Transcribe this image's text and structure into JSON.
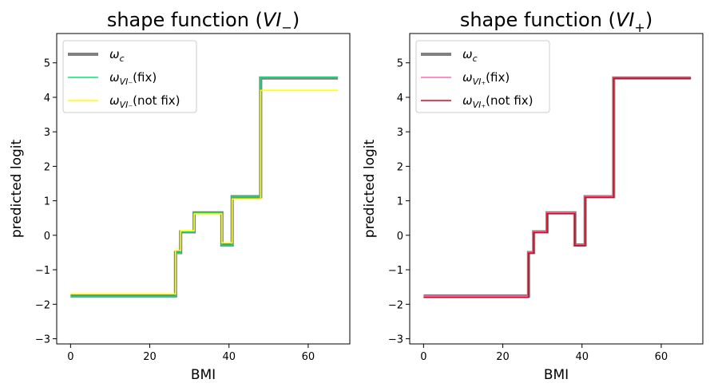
{
  "chart_data": [
    {
      "type": "line",
      "title": "shape function (VI₋)",
      "title_parts": {
        "prefix": "shape function (",
        "symbol": "VI",
        "subscript": "−",
        "suffix": ")"
      },
      "xlabel": "BMI",
      "ylabel": "predicted logit",
      "xlim": [
        -3.5,
        70.5
      ],
      "ylim": [
        -3.15,
        5.85
      ],
      "xticks": [
        0,
        20,
        40,
        60
      ],
      "yticks": [
        -3,
        -2,
        -1,
        0,
        1,
        2,
        3,
        4,
        5
      ],
      "legend_position": "upper left",
      "series": [
        {
          "name": "ω_c",
          "label_parts": {
            "base": "ω",
            "sub": "c",
            "suffix": ""
          },
          "color": "#808080",
          "width": 4,
          "x": [
            0,
            26.5,
            26.5,
            27.8,
            27.8,
            31.2,
            31.2,
            38.2,
            38.2,
            40.8,
            40.8,
            48.0,
            48.0,
            67.5
          ],
          "y": [
            -1.76,
            -1.76,
            -0.5,
            -0.5,
            0.1,
            0.1,
            0.65,
            0.65,
            -0.28,
            -0.28,
            1.12,
            1.12,
            4.56,
            4.56
          ]
        },
        {
          "name": "ω_VI₋(fix)",
          "label_parts": {
            "base": "ω",
            "sub": "VI₋",
            "suffix": "(fix)"
          },
          "color": "#00e676",
          "width": 1.6,
          "x": [
            0,
            26.5,
            26.5,
            27.8,
            27.8,
            31.2,
            31.2,
            38.2,
            38.2,
            40.8,
            40.8,
            48.0,
            48.0,
            67.5
          ],
          "y": [
            -1.78,
            -1.78,
            -0.52,
            -0.52,
            0.1,
            0.1,
            0.65,
            0.65,
            -0.3,
            -0.3,
            1.12,
            1.12,
            4.58,
            4.58
          ]
        },
        {
          "name": "ω_VI₋(not fix)",
          "label_parts": {
            "base": "ω",
            "sub": "VI₋",
            "suffix": "(not fix)"
          },
          "color": "#ffff00",
          "width": 1.6,
          "x": [
            0,
            26.5,
            26.5,
            27.8,
            27.8,
            31.2,
            31.2,
            38.2,
            38.2,
            40.8,
            40.8,
            48.0,
            48.0,
            67.5
          ],
          "y": [
            -1.7,
            -1.7,
            -0.44,
            -0.44,
            0.13,
            0.13,
            0.62,
            0.62,
            -0.22,
            -0.22,
            1.05,
            1.05,
            4.2,
            4.2
          ]
        }
      ]
    },
    {
      "type": "line",
      "title": "shape function (VI₊)",
      "title_parts": {
        "prefix": "shape function (",
        "symbol": "VI",
        "subscript": "+",
        "suffix": ")"
      },
      "xlabel": "BMI",
      "ylabel": "predicted logit",
      "xlim": [
        -3.5,
        70.5
      ],
      "ylim": [
        -3.15,
        5.85
      ],
      "xticks": [
        0,
        20,
        40,
        60
      ],
      "yticks": [
        -3,
        -2,
        -1,
        0,
        1,
        2,
        3,
        4,
        5
      ],
      "legend_position": "upper left",
      "series": [
        {
          "name": "ω_c",
          "label_parts": {
            "base": "ω",
            "sub": "c",
            "suffix": ""
          },
          "color": "#808080",
          "width": 4,
          "x": [
            0,
            26.5,
            26.5,
            27.8,
            27.8,
            31.2,
            31.2,
            38.2,
            38.2,
            40.8,
            40.8,
            48.0,
            48.0,
            67.5
          ],
          "y": [
            -1.76,
            -1.76,
            -0.5,
            -0.5,
            0.1,
            0.1,
            0.65,
            0.65,
            -0.28,
            -0.28,
            1.12,
            1.12,
            4.56,
            4.56
          ]
        },
        {
          "name": "ω_VI₊(fix)",
          "label_parts": {
            "base": "ω",
            "sub": "VI₊",
            "suffix": "(fix)"
          },
          "color": "#ff69b4",
          "width": 1.6,
          "x": [
            0,
            26.5,
            26.5,
            27.8,
            27.8,
            31.2,
            31.2,
            38.2,
            38.2,
            40.8,
            40.8,
            48.0,
            48.0,
            67.5
          ],
          "y": [
            -1.77,
            -1.77,
            -0.5,
            -0.5,
            0.1,
            0.1,
            0.65,
            0.65,
            -0.29,
            -0.29,
            1.12,
            1.12,
            4.56,
            4.56
          ]
        },
        {
          "name": "ω_VI₊(not fix)",
          "label_parts": {
            "base": "ω",
            "sub": "VI₊",
            "suffix": "(not fix)"
          },
          "color": "#e8001c",
          "width": 1.6,
          "x": [
            0,
            26.5,
            26.5,
            27.8,
            27.8,
            31.2,
            31.2,
            38.2,
            38.2,
            40.8,
            40.8,
            48.0,
            48.0,
            67.5
          ],
          "y": [
            -1.8,
            -1.8,
            -0.52,
            -0.52,
            0.08,
            0.08,
            0.63,
            0.63,
            -0.3,
            -0.3,
            1.1,
            1.1,
            4.55,
            4.55
          ]
        }
      ]
    }
  ]
}
